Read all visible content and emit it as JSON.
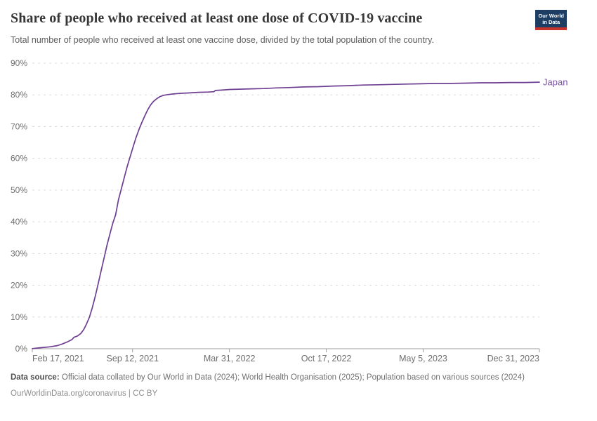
{
  "header": {
    "title": "Share of people who received at least one dose of COVID-19 vaccine",
    "subtitle": "Total number of people who received at least one vaccine dose, divided by the total population of the country.",
    "logo": {
      "line1": "Our World",
      "line2": "in Data"
    }
  },
  "colors": {
    "line": "#6d3e91",
    "entity_label": "#7a52a1",
    "gridline": "#dcdcdc",
    "axis": "#9e9e9e",
    "tick_text": "#6e6e6e",
    "logo_background": "#1d3d63",
    "logo_red_bar": "#c5332b"
  },
  "chart_data": {
    "type": "line",
    "title": "Share of people who received at least one dose of COVID-19 vaccine",
    "entity": "Japan",
    "unit": "%",
    "grid": "dashed horizontal gridlines",
    "legend_position": "end-of-line label",
    "x_min": "2021-02-17",
    "x_max": "2023-12-31",
    "y_min": 0,
    "y_max": 90,
    "yticks": [
      {
        "value": 0,
        "label": "0%"
      },
      {
        "value": 10,
        "label": "10%"
      },
      {
        "value": 20,
        "label": "20%"
      },
      {
        "value": 30,
        "label": "30%"
      },
      {
        "value": 40,
        "label": "40%"
      },
      {
        "value": 50,
        "label": "50%"
      },
      {
        "value": 60,
        "label": "60%"
      },
      {
        "value": 70,
        "label": "70%"
      },
      {
        "value": 80,
        "label": "80%"
      },
      {
        "value": 90,
        "label": "90%"
      }
    ],
    "xticks": [
      {
        "date": "2021-02-17",
        "label": "Feb 17, 2021"
      },
      {
        "date": "2021-09-12",
        "label": "Sep 12, 2021"
      },
      {
        "date": "2022-03-31",
        "label": "Mar 31, 2022"
      },
      {
        "date": "2022-10-17",
        "label": "Oct 17, 2022"
      },
      {
        "date": "2023-05-05",
        "label": "May 5, 2023"
      },
      {
        "date": "2023-12-31",
        "label": "Dec 31, 2023"
      }
    ],
    "series": [
      {
        "name": "Japan",
        "color": "#6d3e91",
        "points": [
          [
            "2021-02-17",
            0.05
          ],
          [
            "2021-03-05",
            0.3
          ],
          [
            "2021-03-25",
            0.6
          ],
          [
            "2021-04-10",
            1.0
          ],
          [
            "2021-04-20",
            1.5
          ],
          [
            "2021-05-01",
            2.2
          ],
          [
            "2021-05-10",
            2.9
          ],
          [
            "2021-05-14",
            3.6
          ],
          [
            "2021-05-21",
            4.0
          ],
          [
            "2021-05-28",
            4.8
          ],
          [
            "2021-06-03",
            6.0
          ],
          [
            "2021-06-09",
            7.8
          ],
          [
            "2021-06-15",
            10.0
          ],
          [
            "2021-06-21",
            13.0
          ],
          [
            "2021-06-27",
            16.5
          ],
          [
            "2021-07-03",
            20.5
          ],
          [
            "2021-07-09",
            24.5
          ],
          [
            "2021-07-15",
            28.5
          ],
          [
            "2021-07-21",
            32.5
          ],
          [
            "2021-07-27",
            36.0
          ],
          [
            "2021-08-02",
            39.5
          ],
          [
            "2021-08-08",
            42.2
          ],
          [
            "2021-08-14",
            47.0
          ],
          [
            "2021-08-20",
            50.5
          ],
          [
            "2021-08-26",
            54.0
          ],
          [
            "2021-09-01",
            57.5
          ],
          [
            "2021-09-07",
            60.5
          ],
          [
            "2021-09-13",
            63.5
          ],
          [
            "2021-09-19",
            66.5
          ],
          [
            "2021-09-25",
            69.0
          ],
          [
            "2021-10-01",
            71.2
          ],
          [
            "2021-10-07",
            73.3
          ],
          [
            "2021-10-13",
            75.2
          ],
          [
            "2021-10-19",
            76.8
          ],
          [
            "2021-10-25",
            77.9
          ],
          [
            "2021-11-01",
            78.8
          ],
          [
            "2021-11-08",
            79.5
          ],
          [
            "2021-11-16",
            79.9
          ],
          [
            "2021-11-24",
            80.1
          ],
          [
            "2021-12-05",
            80.3
          ],
          [
            "2021-12-20",
            80.5
          ],
          [
            "2022-01-05",
            80.6
          ],
          [
            "2022-01-25",
            80.8
          ],
          [
            "2022-02-15",
            80.9
          ],
          [
            "2022-02-27",
            81.0
          ],
          [
            "2022-03-02",
            81.4
          ],
          [
            "2022-03-15",
            81.5
          ],
          [
            "2022-04-01",
            81.7
          ],
          [
            "2022-04-20",
            81.8
          ],
          [
            "2022-05-15",
            81.9
          ],
          [
            "2022-06-10",
            82.0
          ],
          [
            "2022-07-05",
            82.2
          ],
          [
            "2022-08-01",
            82.3
          ],
          [
            "2022-09-01",
            82.5
          ],
          [
            "2022-10-01",
            82.6
          ],
          [
            "2022-11-01",
            82.8
          ],
          [
            "2022-12-01",
            82.9
          ],
          [
            "2023-01-01",
            83.1
          ],
          [
            "2023-02-01",
            83.2
          ],
          [
            "2023-03-01",
            83.3
          ],
          [
            "2023-04-01",
            83.4
          ],
          [
            "2023-05-01",
            83.5
          ],
          [
            "2023-06-01",
            83.6
          ],
          [
            "2023-07-01",
            83.6
          ],
          [
            "2023-08-01",
            83.7
          ],
          [
            "2023-09-01",
            83.8
          ],
          [
            "2023-10-01",
            83.8
          ],
          [
            "2023-11-01",
            83.9
          ],
          [
            "2023-12-01",
            83.9
          ],
          [
            "2023-12-31",
            84.0
          ]
        ]
      }
    ]
  },
  "footer": {
    "source_label": "Data source:",
    "source_text": "Official data collated by Our World in Data (2024); World Health Organisation (2025); Population based on various sources (2024)",
    "link": "OurWorldinData.org/coronavirus",
    "separator": "|",
    "license": "CC BY"
  }
}
